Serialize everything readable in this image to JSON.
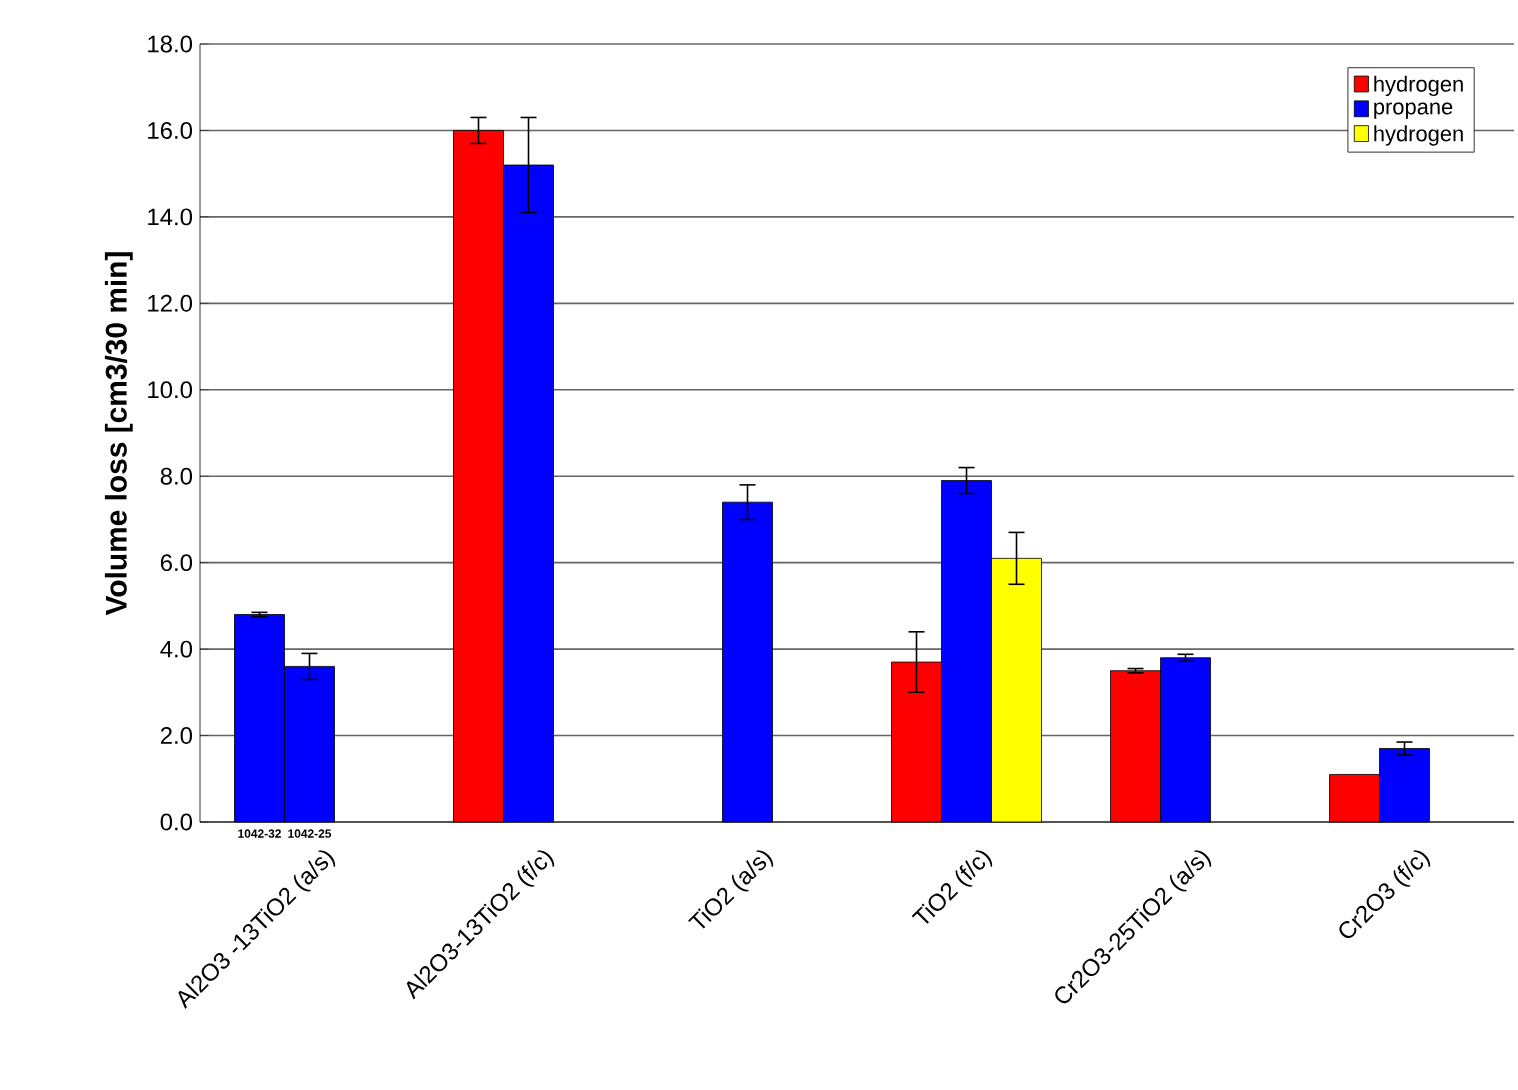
{
  "chart_data": {
    "type": "bar",
    "ylabel": "Volume loss [cm3/30 min]",
    "categories": [
      "Al2O3 -13TiO2 (a/s)",
      "Al2O3-13TiO2 (f/c)",
      "TiO2 (a/s)",
      "TiO2 (f/c)",
      "Cr2O3-25TiO2 (a/s)",
      "Cr2O3 (f/c)"
    ],
    "series": [
      {
        "name": "hydrogen",
        "color": "#ff0000",
        "colors": [
          "#0000ff",
          "#ff0000",
          "#ff0000",
          "#ff0000",
          "#ff0000",
          "#ff0000"
        ],
        "values": [
          4.8,
          16.0,
          null,
          3.7,
          3.5,
          1.1
        ],
        "errors": [
          0.05,
          0.3,
          null,
          0.7,
          0.05,
          null
        ]
      },
      {
        "name": "propane",
        "color": "#0000ff",
        "values": [
          3.6,
          15.2,
          7.4,
          7.9,
          3.8,
          1.7
        ],
        "errors": [
          0.3,
          1.1,
          0.4,
          0.3,
          0.08,
          0.15
        ]
      },
      {
        "name": "hydrogen",
        "color": "#ffff00",
        "values": [
          null,
          null,
          null,
          6.1,
          null,
          null
        ],
        "errors": [
          null,
          null,
          null,
          0.6,
          null,
          null
        ]
      }
    ],
    "ylim": [
      0,
      18
    ],
    "yticks": [
      {
        "value": 0,
        "label": "0.0"
      },
      {
        "value": 2,
        "label": "2.0"
      },
      {
        "value": 4,
        "label": "4.0"
      },
      {
        "value": 6,
        "label": "6.0"
      },
      {
        "value": 8,
        "label": "8.0"
      },
      {
        "value": 10,
        "label": "10.0"
      },
      {
        "value": 12,
        "label": "12.0"
      },
      {
        "value": 14,
        "label": "14.0"
      },
      {
        "value": 16,
        "label": "16.0"
      },
      {
        "value": 18,
        "label": "18.0"
      }
    ],
    "grid": "y",
    "legend": "top right",
    "annotations": [
      "1042-32",
      "1042-25"
    ]
  }
}
